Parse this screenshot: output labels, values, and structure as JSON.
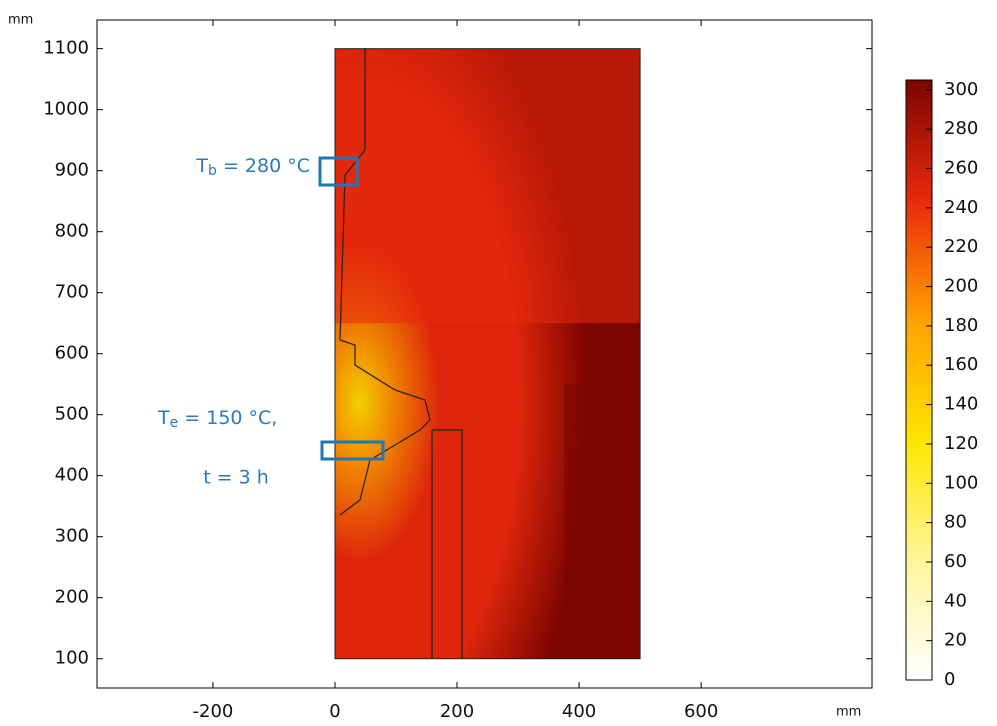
{
  "chart_data": {
    "type": "contour",
    "x_label": "mm",
    "y_label": "mm",
    "xlim": [
      -390,
      880
    ],
    "ylim": [
      52,
      1147
    ],
    "xticks": [
      -200,
      0,
      200,
      400,
      600
    ],
    "yticks": [
      100,
      200,
      300,
      400,
      500,
      600,
      700,
      800,
      900,
      1000,
      1100
    ],
    "domain": {
      "x": [
        0,
        500
      ],
      "y": [
        100,
        1100
      ]
    },
    "clim": [
      0,
      305
    ],
    "cticks": [
      0,
      20,
      40,
      60,
      80,
      100,
      120,
      140,
      160,
      180,
      200,
      220,
      240,
      260,
      280,
      300
    ],
    "colormap": [
      "#ffffff",
      "#fff59a",
      "#ffe600",
      "#ffa000",
      "#e82a0c",
      "#7c0500"
    ],
    "annotations": [
      {
        "symbol": "T",
        "subscript": "b",
        "text": " = 280 °C"
      },
      {
        "symbol": "T",
        "subscript": "e",
        "text": " = 150 °C,"
      },
      {
        "text": "t = 3 h"
      }
    ]
  }
}
